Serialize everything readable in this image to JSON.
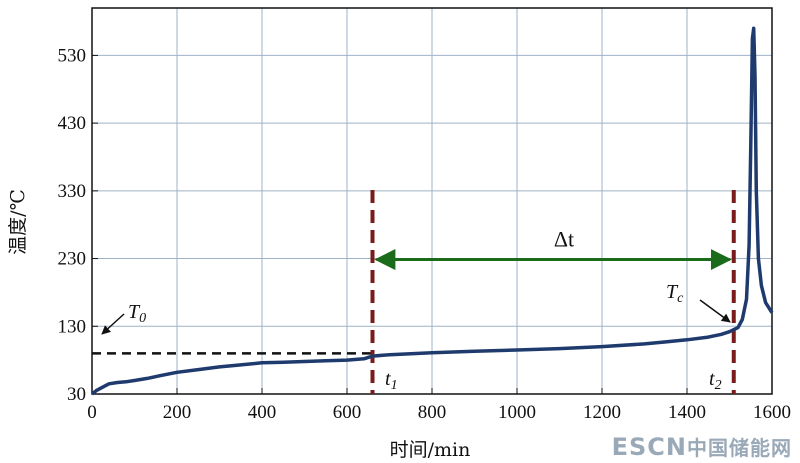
{
  "chart_data": {
    "type": "line",
    "xlabel": "时间/min",
    "ylabel": "温度/℃",
    "xlim": [
      0,
      1600
    ],
    "ylim": [
      30,
      600
    ],
    "xticks": [
      0,
      200,
      400,
      600,
      800,
      1000,
      1200,
      1400,
      1600
    ],
    "yticks": [
      30,
      130,
      230,
      330,
      430,
      530
    ],
    "grid": true,
    "series": [
      {
        "color": "#1f3b6e",
        "x": [
          0,
          10,
          25,
          40,
          60,
          80,
          100,
          130,
          160,
          200,
          250,
          300,
          350,
          400,
          450,
          500,
          550,
          600,
          640,
          660,
          700,
          800,
          900,
          1000,
          1100,
          1200,
          1300,
          1350,
          1400,
          1450,
          1480,
          1500,
          1520,
          1530,
          1540,
          1546,
          1550,
          1554,
          1557,
          1560,
          1563,
          1568,
          1575,
          1585,
          1600
        ],
        "y": [
          30,
          35,
          40,
          45,
          47,
          48,
          50,
          53,
          57,
          62,
          66,
          70,
          73,
          76,
          77,
          78,
          79,
          80,
          82,
          86,
          88,
          91,
          93,
          95,
          97,
          100,
          104,
          107,
          110,
          114,
          118,
          122,
          128,
          140,
          170,
          250,
          400,
          555,
          570,
          500,
          330,
          230,
          190,
          165,
          150
        ]
      }
    ],
    "annotations": {
      "t0_label": "T",
      "t0_sub": "0",
      "t0_level": 90,
      "t1_label": "t",
      "t1_sub": "1",
      "t1_x": 660,
      "t2_label": "t",
      "t2_sub": "2",
      "t2_x": 1510,
      "tc_label": "T",
      "tc_sub": "c",
      "dt_label": "Δt",
      "dt_level": 230,
      "arrow_color": "#1a6b1a",
      "vline_color": "#7a1c1c",
      "hline_color": "#111111"
    }
  },
  "watermark": {
    "latin": "ESCN",
    "cn": "中国储能网"
  }
}
